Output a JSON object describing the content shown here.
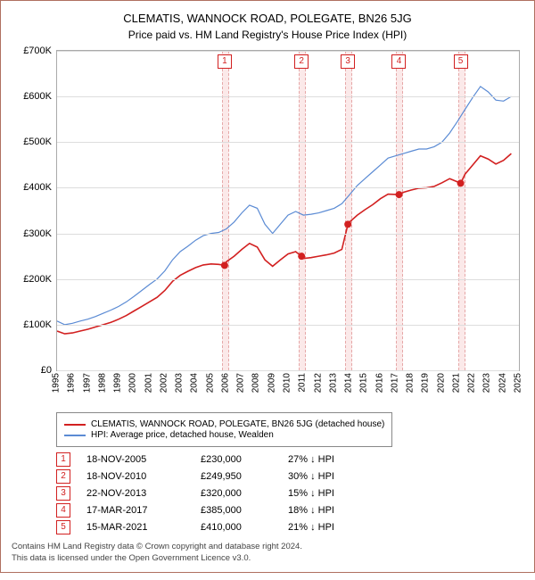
{
  "title_main": "CLEMATIS, WANNOCK ROAD, POLEGATE, BN26 5JG",
  "title_sub": "Price paid vs. HM Land Registry's House Price Index (HPI)",
  "chart": {
    "type": "line",
    "background_color": "#ffffff",
    "grid_color": "#dddddd",
    "axis_color": "#aaaaaa",
    "xlim": [
      1995,
      2025
    ],
    "ylim": [
      0,
      700000
    ],
    "ytick_step": 100000,
    "yticks": [
      "£0",
      "£100K",
      "£200K",
      "£300K",
      "£400K",
      "£500K",
      "£600K",
      "£700K"
    ],
    "xticks": [
      1995,
      1996,
      1997,
      1998,
      1999,
      2000,
      2001,
      2002,
      2003,
      2004,
      2005,
      2006,
      2007,
      2008,
      2009,
      2010,
      2011,
      2012,
      2013,
      2014,
      2015,
      2016,
      2017,
      2018,
      2019,
      2020,
      2021,
      2022,
      2023,
      2024,
      2025
    ],
    "title_fontsize": 13,
    "label_fontsize": 11,
    "tick_fontsize": 10,
    "series": [
      {
        "name": "HPI: Average price, detached house, Wealden",
        "color": "#5b8bd4",
        "line_width": 1.2,
        "points": [
          [
            1995,
            108000
          ],
          [
            1995.5,
            100000
          ],
          [
            1996,
            103000
          ],
          [
            1996.5,
            108000
          ],
          [
            1997,
            112000
          ],
          [
            1997.5,
            118000
          ],
          [
            1998,
            125000
          ],
          [
            1998.5,
            132000
          ],
          [
            1999,
            140000
          ],
          [
            1999.5,
            150000
          ],
          [
            2000,
            162000
          ],
          [
            2000.5,
            175000
          ],
          [
            2001,
            188000
          ],
          [
            2001.5,
            200000
          ],
          [
            2002,
            218000
          ],
          [
            2002.5,
            242000
          ],
          [
            2003,
            260000
          ],
          [
            2003.5,
            272000
          ],
          [
            2004,
            285000
          ],
          [
            2004.5,
            295000
          ],
          [
            2005,
            300000
          ],
          [
            2005.5,
            302000
          ],
          [
            2006,
            310000
          ],
          [
            2006.5,
            325000
          ],
          [
            2007,
            345000
          ],
          [
            2007.5,
            362000
          ],
          [
            2008,
            355000
          ],
          [
            2008.5,
            320000
          ],
          [
            2009,
            300000
          ],
          [
            2009.5,
            320000
          ],
          [
            2010,
            340000
          ],
          [
            2010.5,
            348000
          ],
          [
            2011,
            340000
          ],
          [
            2011.5,
            342000
          ],
          [
            2012,
            345000
          ],
          [
            2012.5,
            350000
          ],
          [
            2013,
            355000
          ],
          [
            2013.5,
            365000
          ],
          [
            2014,
            385000
          ],
          [
            2014.5,
            405000
          ],
          [
            2015,
            420000
          ],
          [
            2015.5,
            435000
          ],
          [
            2016,
            450000
          ],
          [
            2016.5,
            465000
          ],
          [
            2017,
            470000
          ],
          [
            2017.5,
            475000
          ],
          [
            2018,
            480000
          ],
          [
            2018.5,
            485000
          ],
          [
            2019,
            485000
          ],
          [
            2019.5,
            490000
          ],
          [
            2020,
            500000
          ],
          [
            2020.5,
            520000
          ],
          [
            2021,
            545000
          ],
          [
            2021.5,
            572000
          ],
          [
            2022,
            598000
          ],
          [
            2022.5,
            622000
          ],
          [
            2023,
            610000
          ],
          [
            2023.5,
            592000
          ],
          [
            2024,
            590000
          ],
          [
            2024.5,
            600000
          ]
        ]
      },
      {
        "name": "CLEMATIS, WANNOCK ROAD, POLEGATE, BN26 5JG (detached house)",
        "color": "#d22020",
        "line_width": 1.6,
        "points": [
          [
            1995,
            86000
          ],
          [
            1995.5,
            80000
          ],
          [
            1996,
            82000
          ],
          [
            1996.5,
            86000
          ],
          [
            1997,
            90000
          ],
          [
            1997.5,
            95000
          ],
          [
            1998,
            100000
          ],
          [
            1998.5,
            105000
          ],
          [
            1999,
            112000
          ],
          [
            1999.5,
            120000
          ],
          [
            2000,
            130000
          ],
          [
            2000.5,
            140000
          ],
          [
            2001,
            150000
          ],
          [
            2001.5,
            160000
          ],
          [
            2002,
            175000
          ],
          [
            2002.5,
            195000
          ],
          [
            2003,
            208000
          ],
          [
            2003.5,
            217000
          ],
          [
            2004,
            225000
          ],
          [
            2004.5,
            231000
          ],
          [
            2005,
            233000
          ],
          [
            2005.5,
            232000
          ],
          [
            2005.88,
            230000
          ],
          [
            2006,
            238000
          ],
          [
            2006.5,
            250000
          ],
          [
            2007,
            265000
          ],
          [
            2007.5,
            278000
          ],
          [
            2008,
            270000
          ],
          [
            2008.5,
            242000
          ],
          [
            2009,
            228000
          ],
          [
            2009.5,
            242000
          ],
          [
            2010,
            255000
          ],
          [
            2010.5,
            260000
          ],
          [
            2010.88,
            249950
          ],
          [
            2011,
            245000
          ],
          [
            2011.5,
            247000
          ],
          [
            2012,
            250000
          ],
          [
            2012.5,
            253000
          ],
          [
            2013,
            257000
          ],
          [
            2013.5,
            265000
          ],
          [
            2013.89,
            320000
          ],
          [
            2014,
            325000
          ],
          [
            2014.5,
            340000
          ],
          [
            2015,
            352000
          ],
          [
            2015.5,
            363000
          ],
          [
            2016,
            376000
          ],
          [
            2016.5,
            386000
          ],
          [
            2017.21,
            385000
          ],
          [
            2017.5,
            390000
          ],
          [
            2018,
            395000
          ],
          [
            2018.5,
            399000
          ],
          [
            2019,
            400000
          ],
          [
            2019.5,
            403000
          ],
          [
            2020,
            411000
          ],
          [
            2020.5,
            420000
          ],
          [
            2021.21,
            410000
          ],
          [
            2021.5,
            430000
          ],
          [
            2022,
            450000
          ],
          [
            2022.5,
            470000
          ],
          [
            2023,
            463000
          ],
          [
            2023.5,
            452000
          ],
          [
            2024,
            460000
          ],
          [
            2024.5,
            475000
          ]
        ]
      }
    ],
    "sale_markers": {
      "color": "#d22020",
      "marker_radius": 4,
      "points": [
        {
          "n": 1,
          "x": 2005.88,
          "y": 230000
        },
        {
          "n": 2,
          "x": 2010.88,
          "y": 249950
        },
        {
          "n": 3,
          "x": 2013.89,
          "y": 320000
        },
        {
          "n": 4,
          "x": 2017.21,
          "y": 385000
        },
        {
          "n": 5,
          "x": 2021.21,
          "y": 410000
        }
      ]
    },
    "sale_band_color": "#fbe9e9",
    "sale_band_border": "#e6a8a8"
  },
  "legend": {
    "items": [
      {
        "color": "#d22020",
        "label": "CLEMATIS, WANNOCK ROAD, POLEGATE, BN26 5JG (detached house)"
      },
      {
        "color": "#5b8bd4",
        "label": "HPI: Average price, detached house, Wealden"
      }
    ]
  },
  "sales_table": {
    "number_box_color": "#d22020",
    "rows": [
      {
        "n": "1",
        "date": "18-NOV-2005",
        "price": "£230,000",
        "hpi": "27% ↓ HPI"
      },
      {
        "n": "2",
        "date": "18-NOV-2010",
        "price": "£249,950",
        "hpi": "30% ↓ HPI"
      },
      {
        "n": "3",
        "date": "22-NOV-2013",
        "price": "£320,000",
        "hpi": "15% ↓ HPI"
      },
      {
        "n": "4",
        "date": "17-MAR-2017",
        "price": "£385,000",
        "hpi": "18% ↓ HPI"
      },
      {
        "n": "5",
        "date": "15-MAR-2021",
        "price": "£410,000",
        "hpi": "21% ↓ HPI"
      }
    ]
  },
  "footer_line1": "Contains HM Land Registry data © Crown copyright and database right 2024.",
  "footer_line2": "This data is licensed under the Open Government Licence v3.0."
}
